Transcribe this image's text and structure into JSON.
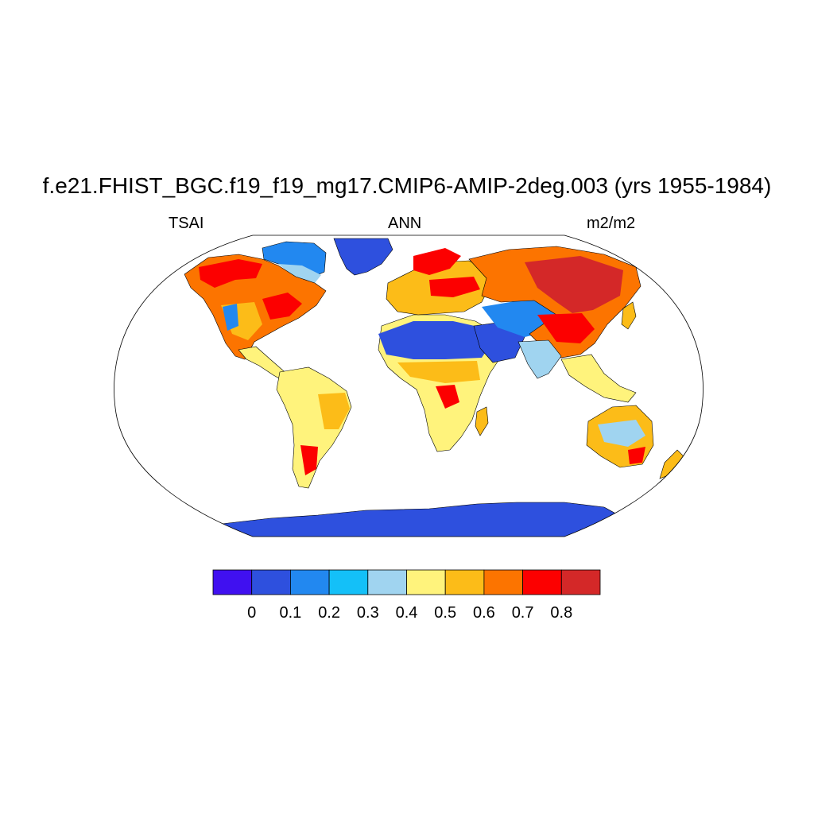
{
  "title": "f.e21.FHIST_BGC.f19_f19_mg17.CMIP6-AMIP-2deg.003 (yrs 1955-1984)",
  "subtitle_left": "TSAI",
  "subtitle_center": "ANN",
  "subtitle_right": "m2/m2",
  "colorbar": {
    "colors": [
      "#4010f0",
      "#2e50de",
      "#2288f0",
      "#14c0f8",
      "#a0d4f0",
      "#fff37c",
      "#fcbc18",
      "#fc7400",
      "#fc0000",
      "#d42828"
    ],
    "labels": [
      "0",
      "0.1",
      "0.2",
      "0.3",
      "0.4",
      "0.5",
      "0.6",
      "0.7",
      "0.8"
    ]
  },
  "map": {
    "projection": "Robinson",
    "ocean_color": "#ffffff",
    "coastline_color": "#000000"
  },
  "chart_data": {
    "type": "heatmap",
    "variable": "TSAI",
    "season": "ANN",
    "units": "m2/m2",
    "levels": [
      0,
      0.1,
      0.2,
      0.3,
      0.4,
      0.5,
      0.6,
      0.7,
      0.8
    ],
    "regions": [
      {
        "region": "Greenland",
        "approx_value": 0.05
      },
      {
        "region": "Antarctica",
        "approx_value": 0.05
      },
      {
        "region": "Sahara / Arabia",
        "approx_value": 0.05
      },
      {
        "region": "Canadian Arctic",
        "approx_value": 0.2
      },
      {
        "region": "Boreal Canada / Alaska",
        "approx_value": 0.75
      },
      {
        "region": "Eastern North America",
        "approx_value": 0.65
      },
      {
        "region": "Siberia / East Asia",
        "approx_value": 0.8
      },
      {
        "region": "Central Asia",
        "approx_value": 0.3
      },
      {
        "region": "Europe",
        "approx_value": 0.55
      },
      {
        "region": "Amazon / South America",
        "approx_value": 0.45
      },
      {
        "region": "Sub-Saharan Africa",
        "approx_value": 0.45
      },
      {
        "region": "Interior Australia",
        "approx_value": 0.35
      },
      {
        "region": "South/Southeast Asia",
        "approx_value": 0.45
      }
    ]
  }
}
